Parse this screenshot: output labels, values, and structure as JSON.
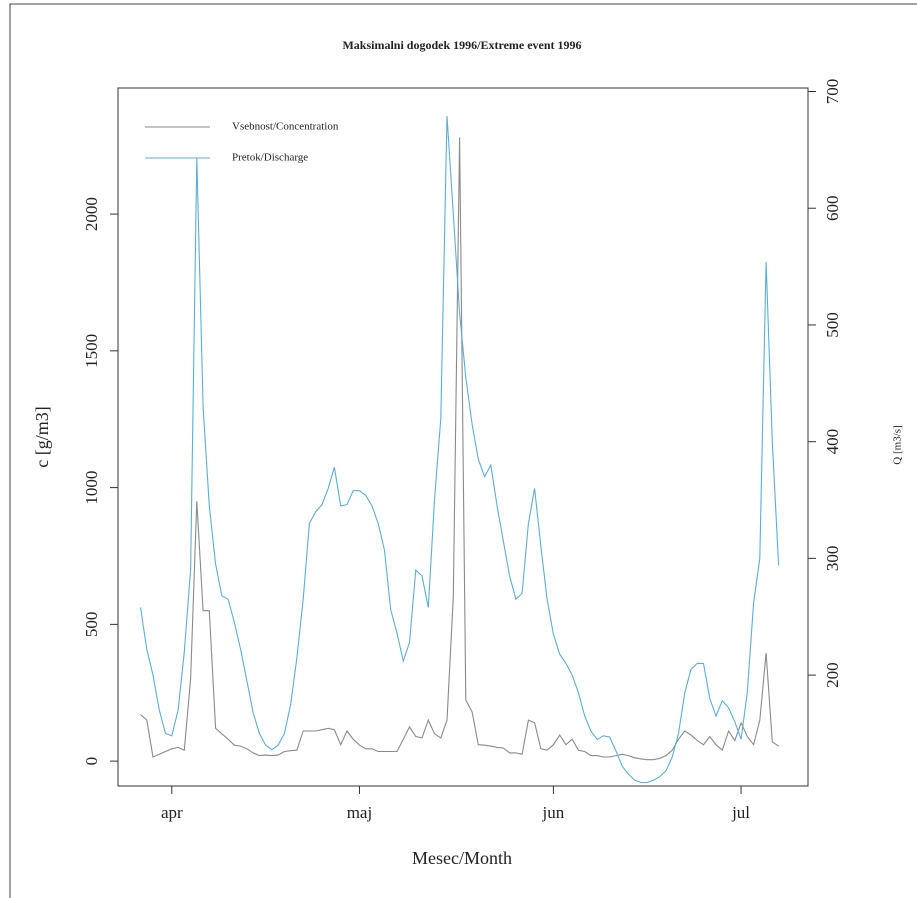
{
  "chart_data": {
    "type": "line",
    "title": "Maksimalni dogodek 1996/Extreme event 1996",
    "xlabel": "Mesec/Month",
    "ylabel": "c [g/m3]",
    "y2label": "Q [m3/s]",
    "x": [
      87,
      88,
      89,
      90,
      91,
      92,
      93,
      94,
      95,
      96,
      97,
      98,
      99,
      100,
      101,
      102,
      103,
      104,
      105,
      106,
      107,
      108,
      109,
      110,
      111,
      112,
      113,
      114,
      115,
      116,
      117,
      118,
      119,
      120,
      121,
      122,
      123,
      124,
      125,
      126,
      127,
      128,
      129,
      130,
      131,
      132,
      133,
      134,
      135,
      136,
      137,
      138,
      139,
      140,
      141,
      142,
      143,
      144,
      145,
      146,
      147,
      148,
      149,
      150,
      151,
      152,
      153,
      154,
      155,
      156,
      157,
      158,
      159,
      160,
      161,
      162,
      163,
      164,
      165,
      166,
      167,
      168,
      169,
      170,
      171,
      172,
      173,
      174,
      175,
      176,
      177,
      178,
      179,
      180,
      181,
      182,
      183,
      184,
      185,
      186,
      187,
      188,
      189
    ],
    "xlim": [
      83.4,
      193.7
    ],
    "xticks": [
      {
        "value": 92,
        "label": "apr"
      },
      {
        "value": 122,
        "label": "maj"
      },
      {
        "value": 153,
        "label": "jun"
      },
      {
        "value": 183,
        "label": "jul"
      }
    ],
    "ylim": [
      -91,
      2461
    ],
    "yticks": [
      0,
      500,
      1000,
      1500,
      2000
    ],
    "y2lim": [
      105,
      703
    ],
    "y2ticks": [
      200,
      300,
      400,
      500,
      600,
      700
    ],
    "legend": "top-left",
    "series": [
      {
        "name": "Vsebnost/Concentration",
        "color": "#8a8a8a",
        "values": [
          170,
          150,
          15,
          25,
          35,
          45,
          50,
          40,
          300,
          950,
          550,
          550,
          120,
          100,
          80,
          58,
          55,
          45,
          30,
          20,
          22,
          20,
          22,
          35,
          38,
          40,
          110,
          110,
          110,
          115,
          120,
          115,
          60,
          110,
          80,
          58,
          45,
          45,
          35,
          35,
          35,
          35,
          80,
          125,
          90,
          85,
          150,
          100,
          85,
          150,
          600,
          2280,
          223,
          180,
          60,
          58,
          55,
          50,
          48,
          30,
          30,
          25,
          150,
          140,
          45,
          40,
          60,
          95,
          60,
          80,
          40,
          35,
          20,
          20,
          15,
          15,
          20,
          25,
          20,
          12,
          8,
          5,
          5,
          10,
          20,
          40,
          80,
          110,
          95,
          75,
          60,
          90,
          60,
          40,
          110,
          75,
          140,
          90,
          60,
          150,
          395,
          70,
          55
        ]
      },
      {
        "name": "Pretok/Discharge",
        "color": "#5aaedc",
        "axis": "y2",
        "values": [
          258,
          222,
          200,
          170,
          150,
          148,
          170,
          220,
          290,
          643,
          430,
          345,
          295,
          268,
          265,
          245,
          222,
          195,
          168,
          150,
          140,
          136,
          140,
          150,
          175,
          215,
          265,
          330,
          340,
          346,
          360,
          378,
          345,
          346,
          358,
          358,
          354,
          345,
          330,
          307,
          256,
          236,
          212,
          228,
          290,
          285,
          258,
          350,
          420,
          679,
          595,
          510,
          455,
          415,
          385,
          370,
          380,
          345,
          315,
          285,
          265,
          270,
          330,
          360,
          310,
          265,
          235,
          218,
          210,
          200,
          185,
          165,
          152,
          145,
          148,
          147,
          135,
          122,
          115,
          110,
          108,
          108,
          110,
          113,
          118,
          130,
          150,
          185,
          205,
          210,
          210,
          180,
          165,
          178,
          172,
          160,
          145,
          185,
          262,
          300,
          554,
          400,
          294
        ]
      }
    ]
  }
}
